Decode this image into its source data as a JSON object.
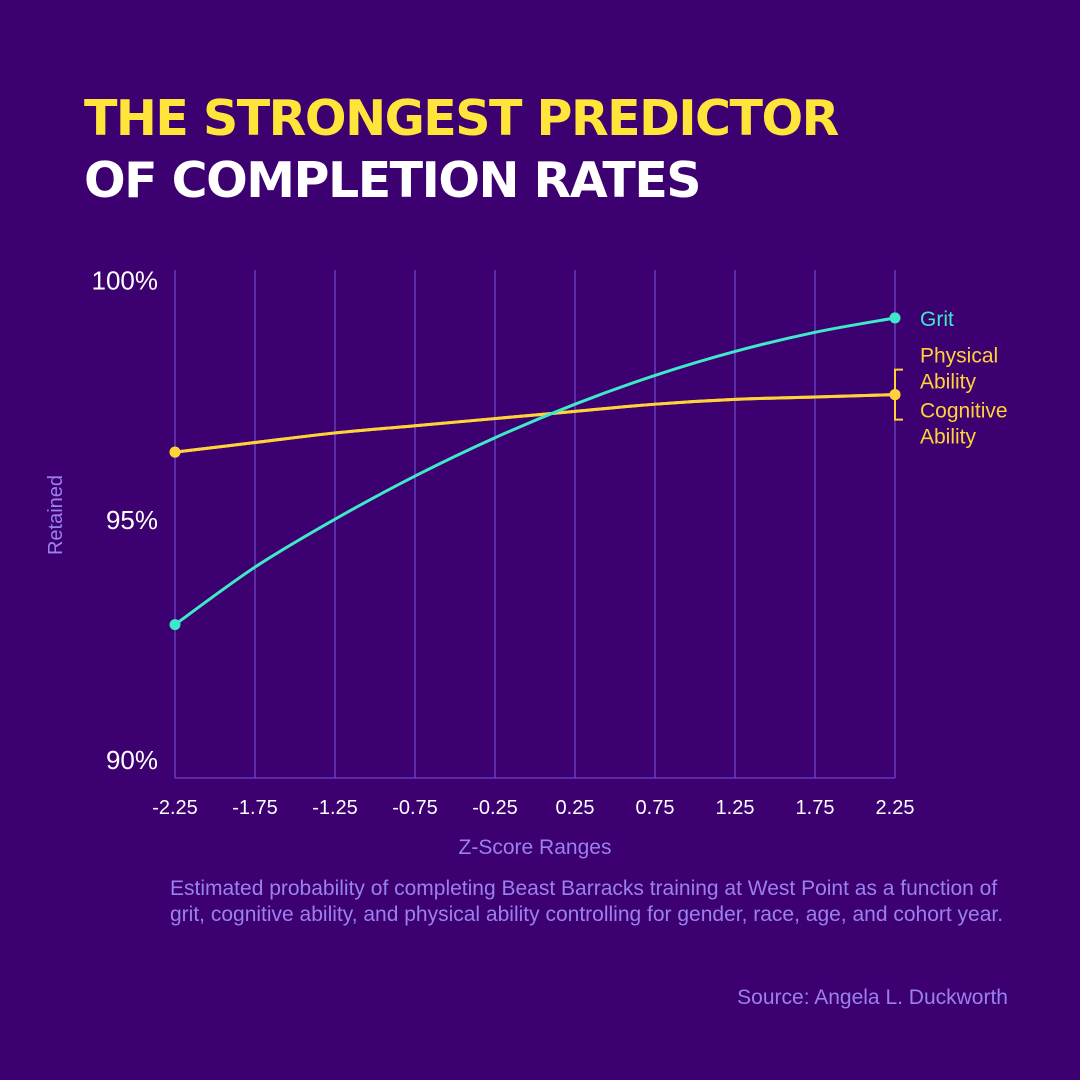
{
  "header": {
    "title_line1": "THE STRONGEST PREDICTOR",
    "title_line2": "OF COMPLETION RATES"
  },
  "caption": "Estimated probability of completing Beast Barracks training at West Point as a function of grit, cognitive ability, and physical ability controlling for gender, race, age, and cohort year.",
  "source": "Source: Angela L. Duckworth",
  "colors": {
    "background": "#3d0070",
    "title_accent": "#ffe53a",
    "grit": "#3ee8c8",
    "ability": "#ffd23a",
    "axis_text": "#9b80f0",
    "grid": "#6e45c8"
  },
  "chart_data": {
    "type": "line",
    "xlabel": "Z-Score Ranges",
    "ylabel": "Retained",
    "x_ticks": [
      "-2.25",
      "-1.75",
      "-1.25",
      "-0.75",
      "-0.25",
      "0.25",
      "0.75",
      "1.25",
      "1.75",
      "2.25"
    ],
    "y_ticks": [
      "100%",
      "95%",
      "90%"
    ],
    "xlim": [
      -2.25,
      2.25
    ],
    "ylim": [
      89.6,
      100.2
    ],
    "grid": "vertical",
    "series": [
      {
        "name": "Grit",
        "x": [
          -2.25,
          -1.75,
          -1.25,
          -0.75,
          -0.25,
          0.25,
          0.75,
          1.25,
          1.75,
          2.25
        ],
        "y": [
          92.8,
          94.0,
          95.0,
          95.9,
          96.7,
          97.4,
          98.0,
          98.5,
          98.9,
          99.2
        ]
      },
      {
        "name": "Physical Ability",
        "x": [
          -2.25,
          -1.75,
          -1.25,
          -0.75,
          -0.25,
          0.25,
          0.75,
          1.25,
          1.75,
          2.25
        ],
        "y": [
          96.4,
          96.6,
          96.8,
          96.95,
          97.1,
          97.25,
          97.4,
          97.5,
          97.55,
          97.6
        ]
      },
      {
        "name": "Cognitive Ability",
        "x": [
          -2.25,
          -1.75,
          -1.25,
          -0.75,
          -0.25,
          0.25,
          0.75,
          1.25,
          1.75,
          2.25
        ],
        "y": [
          96.4,
          96.6,
          96.8,
          96.95,
          97.1,
          97.25,
          97.4,
          97.5,
          97.55,
          97.6
        ]
      }
    ],
    "legend": [
      {
        "lines": [
          "Grit"
        ]
      },
      {
        "lines": [
          "Physical",
          "Ability"
        ]
      },
      {
        "lines": [
          "Cognitive",
          "Ability"
        ]
      }
    ]
  }
}
